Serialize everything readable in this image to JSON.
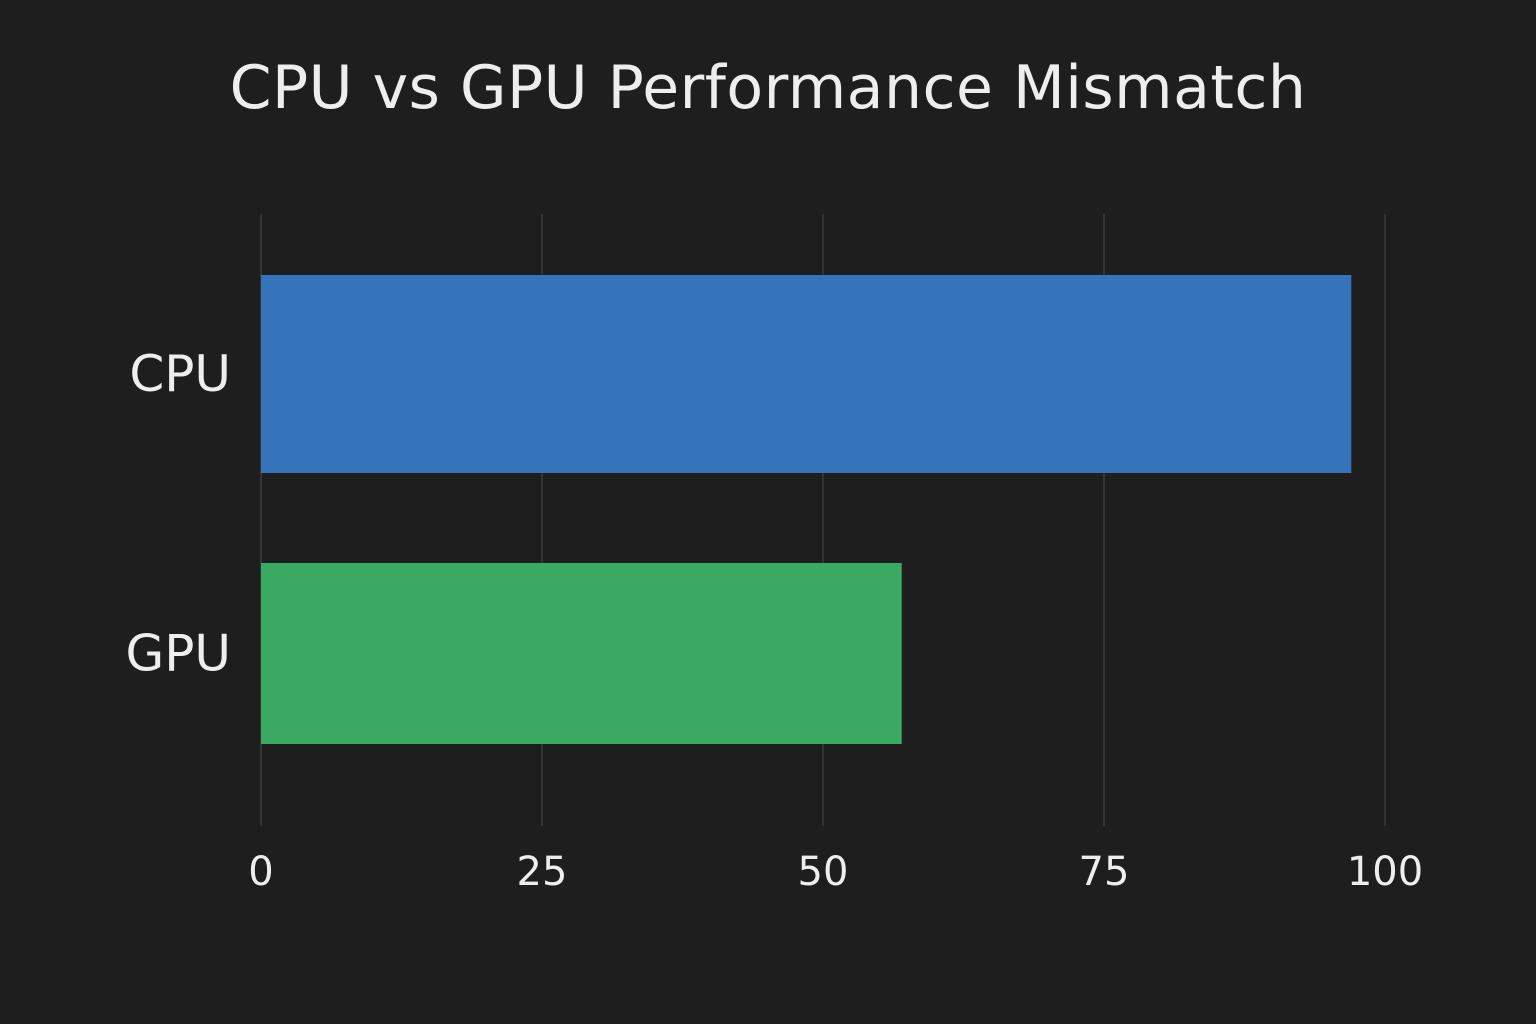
{
  "chart_data": {
    "type": "bar",
    "orientation": "horizontal",
    "title": "CPU vs GPU Performance Mismatch",
    "xlabel": "",
    "ylabel": "",
    "categories": [
      "CPU",
      "GPU"
    ],
    "values": [
      97,
      57
    ],
    "colors": [
      "#3573bc",
      "#3aaa62"
    ],
    "xlim": [
      0,
      100
    ],
    "xticks": [
      "0",
      "25",
      "50",
      "75",
      "100"
    ],
    "grid": "vertical",
    "gridline_color": "#3c3c3c",
    "background": "#1e1e1e"
  }
}
